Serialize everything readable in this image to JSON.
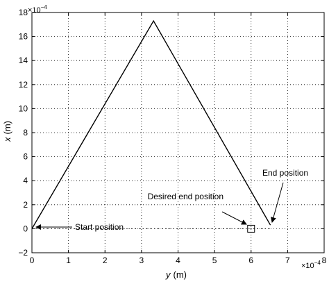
{
  "chart_data": {
    "type": "line",
    "xlabel_var": "y",
    "xlabel_unit": "(m)",
    "ylabel_var": "x",
    "ylabel_unit": "(m)",
    "x_multiplier": "×10",
    "x_exponent": "−4",
    "y_multiplier": "×10",
    "y_exponent": "−4",
    "xlim": [
      0,
      8
    ],
    "ylim": [
      -2,
      18
    ],
    "grid": true,
    "x_ticks": [
      0,
      1,
      2,
      3,
      4,
      5,
      6,
      7,
      8
    ],
    "y_ticks": [
      -2,
      0,
      2,
      4,
      6,
      8,
      10,
      12,
      14,
      16,
      18
    ],
    "x_tick_labels": [
      "0",
      "1",
      "2",
      "3",
      "4",
      "5",
      "6",
      "7",
      "8"
    ],
    "y_tick_labels": [
      "−2",
      "0",
      "2",
      "4",
      "6",
      "8",
      "10",
      "12",
      "14",
      "16",
      "18"
    ],
    "series": [
      {
        "x": [
          0.0,
          3.33,
          6.53
        ],
        "y": [
          0.0,
          17.3,
          0.3
        ]
      }
    ],
    "dotted_reference": {
      "x": [
        0.0,
        6.53
      ],
      "y": [
        0.0,
        0.0
      ]
    },
    "target_marker": {
      "x": 6.0,
      "y": 0.0,
      "shape": "square"
    },
    "annotations": [
      {
        "id": "start",
        "text": "Start position",
        "point": [
          0.0,
          0.0
        ]
      },
      {
        "id": "desired",
        "text": "Desired end position",
        "point": [
          6.0,
          0.0
        ]
      },
      {
        "id": "end",
        "text": "End position",
        "point": [
          6.53,
          0.3
        ]
      }
    ]
  }
}
